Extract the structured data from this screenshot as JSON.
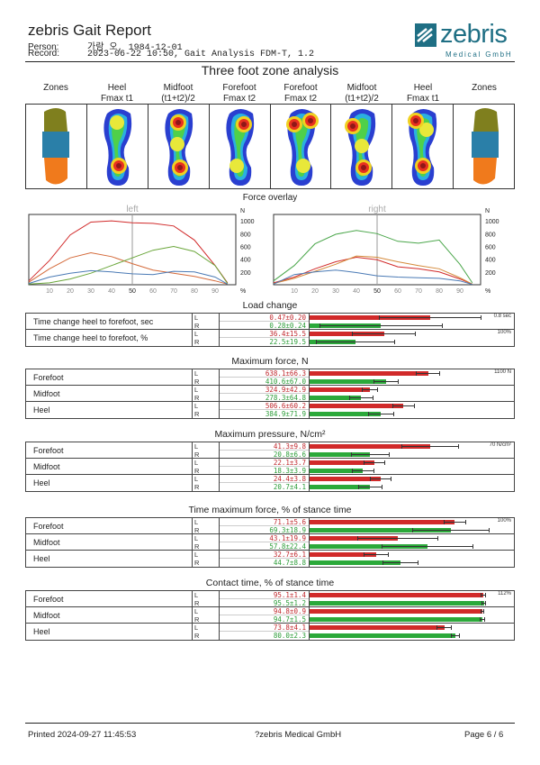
{
  "header": {
    "title": "zebris Gait Report",
    "person_label": "Person:",
    "person_value": "가람 오, 1984-12-01",
    "record_label": "Record:",
    "record_value": "2023-06-22 10:50, Gait Analysis FDM-T, 1.2",
    "logo_text": "zebris",
    "logo_sub": "Medical GmbH"
  },
  "section_title": "Three foot zone analysis",
  "zone_headers": [
    {
      "line1": "Zones",
      "line2": ""
    },
    {
      "line1": "Heel",
      "line2": "Fmax t1"
    },
    {
      "line1": "Midfoot",
      "line2": "(t1+t2)/2"
    },
    {
      "line1": "Forefoot",
      "line2": "Fmax t2"
    },
    {
      "line1": "Forefoot",
      "line2": "Fmax t2"
    },
    {
      "line1": "Midfoot",
      "line2": "(t1+t2)/2"
    },
    {
      "line1": "Heel",
      "line2": "Fmax t1"
    },
    {
      "line1": "Zones",
      "line2": ""
    }
  ],
  "force_overlay": {
    "title": "Force overlay",
    "left_label": "left",
    "right_label": "right",
    "x_ticks": [
      "10",
      "20",
      "30",
      "40",
      "50",
      "60",
      "70",
      "80",
      "90"
    ],
    "y_ticks": [
      "1000",
      "800",
      "600",
      "400",
      "200"
    ],
    "y_unit": "N",
    "x_unit": "%"
  },
  "chart_data": [
    {
      "type": "line",
      "title": "left",
      "xlim": [
        0,
        100
      ],
      "ylim": [
        0,
        1100
      ],
      "series": [
        {
          "color": "#d12a2a",
          "x": [
            0,
            10,
            20,
            30,
            40,
            50,
            60,
            70,
            80,
            90,
            96
          ],
          "y": [
            60,
            380,
            780,
            980,
            1000,
            970,
            960,
            920,
            700,
            300,
            30
          ]
        },
        {
          "color": "#d46a3a",
          "x": [
            0,
            10,
            20,
            30,
            40,
            50,
            60,
            70,
            80,
            90,
            96
          ],
          "y": [
            40,
            250,
            420,
            500,
            440,
            330,
            230,
            180,
            130,
            60,
            10
          ]
        },
        {
          "color": "#6aa63a",
          "x": [
            0,
            10,
            20,
            30,
            40,
            50,
            60,
            70,
            80,
            90,
            96
          ],
          "y": [
            10,
            30,
            90,
            180,
            300,
            420,
            540,
            600,
            520,
            300,
            20
          ]
        },
        {
          "color": "#4a7ab5",
          "x": [
            0,
            10,
            20,
            30,
            40,
            50,
            60,
            70,
            80,
            90,
            96
          ],
          "y": [
            20,
            120,
            180,
            220,
            200,
            170,
            160,
            210,
            200,
            120,
            10
          ]
        }
      ]
    },
    {
      "type": "line",
      "title": "right",
      "xlim": [
        0,
        100
      ],
      "ylim": [
        0,
        1100
      ],
      "series": [
        {
          "color": "#4aa64a",
          "x": [
            0,
            10,
            20,
            30,
            40,
            50,
            60,
            70,
            80,
            90,
            96
          ],
          "y": [
            60,
            300,
            640,
            790,
            850,
            800,
            680,
            650,
            700,
            320,
            30
          ]
        },
        {
          "color": "#d12a2a",
          "x": [
            0,
            10,
            20,
            30,
            40,
            50,
            60,
            70,
            80,
            90,
            96
          ],
          "y": [
            30,
            120,
            250,
            360,
            430,
            390,
            280,
            250,
            200,
            90,
            10
          ]
        },
        {
          "color": "#d48a3a",
          "x": [
            0,
            10,
            20,
            30,
            40,
            50,
            60,
            70,
            80,
            90,
            96
          ],
          "y": [
            20,
            100,
            210,
            320,
            450,
            430,
            360,
            300,
            250,
            110,
            10
          ]
        },
        {
          "color": "#4a7ab5",
          "x": [
            0,
            10,
            20,
            30,
            40,
            50,
            60,
            70,
            80,
            90,
            96
          ],
          "y": [
            10,
            160,
            200,
            230,
            190,
            140,
            120,
            110,
            100,
            60,
            5
          ]
        }
      ]
    }
  ],
  "metrics": [
    {
      "title": "Load change",
      "scale_label": "0.8 sec",
      "scale_label2": "100%",
      "groups": [
        {
          "name": "Time change heel to forefoot, sec",
          "L": "0.47±0.20",
          "R": "0.28±0.24",
          "Lf": 0.59,
          "Rf": 0.35,
          "Le": 0.25,
          "Re": 0.3
        },
        {
          "name": "Time change heel to forefoot, %",
          "L": "36.4±15.5",
          "R": "22.5±19.5",
          "Lf": 0.364,
          "Rf": 0.225,
          "Le": 0.155,
          "Re": 0.195
        }
      ]
    },
    {
      "title": "Maximum force, N",
      "scale_label": "1100 N",
      "groups": [
        {
          "name": "Forefoot",
          "L": "638.1±66.3",
          "R": "410.6±67.0",
          "Lf": 0.58,
          "Rf": 0.373,
          "Le": 0.06,
          "Re": 0.061
        },
        {
          "name": "Midfoot",
          "L": "324.9±42.9",
          "R": "278.3±64.8",
          "Lf": 0.295,
          "Rf": 0.253,
          "Le": 0.039,
          "Re": 0.059
        },
        {
          "name": "Heel",
          "L": "506.6±60.2",
          "R": "384.9±71.9",
          "Lf": 0.46,
          "Rf": 0.35,
          "Le": 0.055,
          "Re": 0.065
        }
      ]
    },
    {
      "title": "Maximum pressure, N/cm²",
      "scale_label": "70 N/cm²",
      "groups": [
        {
          "name": "Forefoot",
          "L": "41.3±9.8",
          "R": "20.8±6.6",
          "Lf": 0.59,
          "Rf": 0.297,
          "Le": 0.14,
          "Re": 0.094
        },
        {
          "name": "Midfoot",
          "L": "22.1±3.7",
          "R": "18.3±3.9",
          "Lf": 0.316,
          "Rf": 0.261,
          "Le": 0.053,
          "Re": 0.056
        },
        {
          "name": "Heel",
          "L": "24.4±3.8",
          "R": "20.7±4.1",
          "Lf": 0.349,
          "Rf": 0.296,
          "Le": 0.054,
          "Re": 0.059
        }
      ]
    },
    {
      "title": "Time maximum force,  % of stance time",
      "scale_label": "100%",
      "groups": [
        {
          "name": "Forefoot",
          "L": "71.1±5.6",
          "R": "69.3±18.9",
          "Lf": 0.711,
          "Rf": 0.693,
          "Le": 0.056,
          "Re": 0.189
        },
        {
          "name": "Midfoot",
          "L": "43.1±19.9",
          "R": "57.8±22.4",
          "Lf": 0.431,
          "Rf": 0.578,
          "Le": 0.199,
          "Re": 0.224
        },
        {
          "name": "Heel",
          "L": "32.7±6.1",
          "R": "44.7±8.8",
          "Lf": 0.327,
          "Rf": 0.447,
          "Le": 0.061,
          "Re": 0.088
        }
      ]
    },
    {
      "title": "Contact time,  % of stance time",
      "scale_label": "112%",
      "groups": [
        {
          "name": "Forefoot",
          "L": "95.1±1.4",
          "R": "95.5±1.2",
          "Lf": 0.849,
          "Rf": 0.853,
          "Le": 0.0125,
          "Re": 0.011
        },
        {
          "name": "Midfoot",
          "L": "94.8±0.9",
          "R": "94.7±1.5",
          "Lf": 0.846,
          "Rf": 0.846,
          "Le": 0.008,
          "Re": 0.013
        },
        {
          "name": "Heel",
          "L": "73.8±4.1",
          "R": "80.0±2.3",
          "Lf": 0.659,
          "Rf": 0.714,
          "Le": 0.037,
          "Re": 0.021
        }
      ]
    }
  ],
  "footer": {
    "printed": "Printed  2024-09-27 11:45:53",
    "company": "?zebris Medical GmbH",
    "page": "Page  6 / 6"
  },
  "zone_colors": {
    "forefoot": "#7f7f1e",
    "midfoot": "#2a7fa8",
    "heel": "#f07a1c"
  },
  "bar_colors": {
    "left": "#d12a2a",
    "right": "#2ba93a"
  }
}
